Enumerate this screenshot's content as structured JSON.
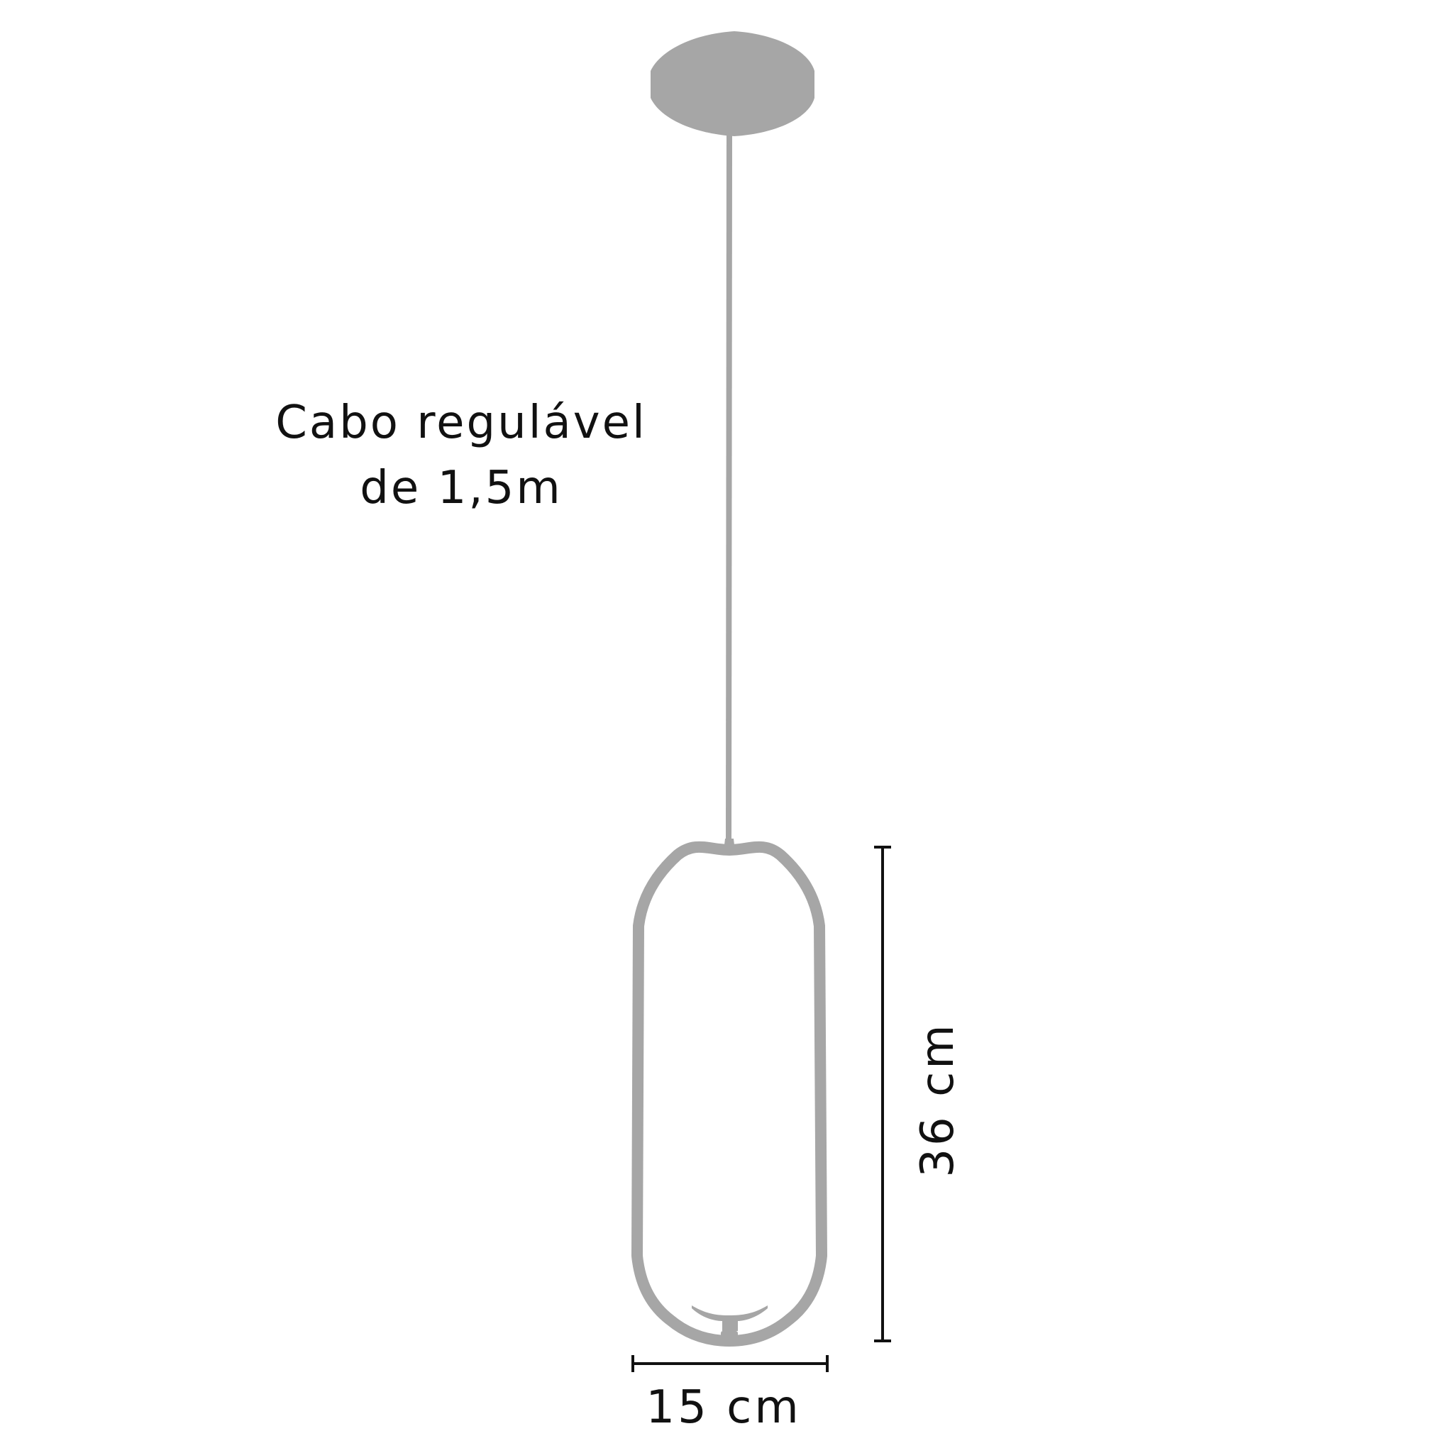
{
  "labels": {
    "cable_line1": "Cabo regulável",
    "cable_line2": "de 1,5m",
    "width": "15 cm",
    "height": "36 cm"
  },
  "colors": {
    "fixture": "#a6a6a6",
    "dimension": "#111111",
    "background": "#ffffff"
  }
}
